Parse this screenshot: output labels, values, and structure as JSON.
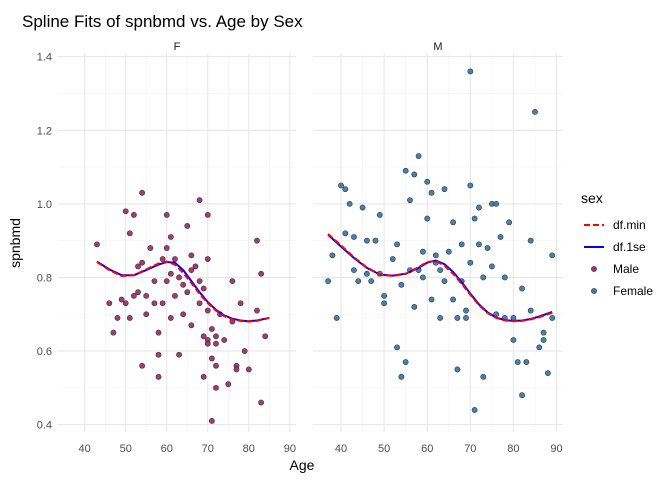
{
  "chart_data": {
    "type": "scatter",
    "title": "Spline Fits of spnbmd vs. Age by Sex",
    "xlabel": "Age",
    "ylabel": "spnbmd",
    "xticks": [
      40,
      50,
      60,
      70,
      80,
      90
    ],
    "yticks": [
      0.4,
      0.6,
      0.8,
      1.0,
      1.2,
      1.4
    ],
    "xlim": [
      33.5,
      91.5
    ],
    "ylim": [
      0.38,
      1.41
    ],
    "grid": true,
    "legend": {
      "title": "sex",
      "placement": "right",
      "entries": [
        {
          "label": "df.min",
          "kind": "line",
          "color": "#ff0000",
          "dash": true
        },
        {
          "label": "df.1se",
          "kind": "line",
          "color": "#0000ff",
          "dash": false
        },
        {
          "label": "Male",
          "kind": "point",
          "color": "#a0306f"
        },
        {
          "label": "Female",
          "kind": "point",
          "color": "#3b7bb0"
        }
      ]
    },
    "panels": [
      {
        "label": "F",
        "point_color": "#a0306f",
        "points": [
          [
            43,
            0.89
          ],
          [
            46,
            0.73
          ],
          [
            47,
            0.65
          ],
          [
            48,
            0.69
          ],
          [
            49,
            0.74
          ],
          [
            50,
            0.73
          ],
          [
            50,
            0.98
          ],
          [
            51,
            0.69
          ],
          [
            51,
            0.92
          ],
          [
            52,
            0.97
          ],
          [
            52,
            0.75
          ],
          [
            53,
            0.83
          ],
          [
            53,
            0.76
          ],
          [
            54,
            1.03
          ],
          [
            54,
            0.84
          ],
          [
            54,
            0.56
          ],
          [
            55,
            0.75
          ],
          [
            55,
            0.7
          ],
          [
            56,
            0.88
          ],
          [
            57,
            0.73
          ],
          [
            57,
            0.79
          ],
          [
            58,
            0.65
          ],
          [
            58,
            0.53
          ],
          [
            58,
            0.59
          ],
          [
            59,
            0.85
          ],
          [
            59,
            0.73
          ],
          [
            60,
            0.79
          ],
          [
            60,
            0.88
          ],
          [
            60,
            0.97
          ],
          [
            61,
            0.81
          ],
          [
            61,
            0.91
          ],
          [
            61,
            0.69
          ],
          [
            62,
            0.85
          ],
          [
            62,
            0.75
          ],
          [
            63,
            0.8
          ],
          [
            63,
            0.59
          ],
          [
            64,
            0.78
          ],
          [
            64,
            0.7
          ],
          [
            65,
            0.94
          ],
          [
            65,
            0.76
          ],
          [
            66,
            0.67
          ],
          [
            66,
            0.86
          ],
          [
            66,
            0.82
          ],
          [
            67,
            0.83
          ],
          [
            68,
            0.79
          ],
          [
            68,
            1.01
          ],
          [
            68,
            0.73
          ],
          [
            69,
            0.64
          ],
          [
            69,
            0.77
          ],
          [
            69,
            0.53
          ],
          [
            70,
            0.97
          ],
          [
            70,
            0.85
          ],
          [
            70,
            0.71
          ],
          [
            70,
            0.63
          ],
          [
            70,
            0.62
          ],
          [
            71,
            0.66
          ],
          [
            71,
            0.58
          ],
          [
            72,
            0.64
          ],
          [
            72,
            0.62
          ],
          [
            72,
            0.56
          ],
          [
            72,
            0.5
          ],
          [
            73,
            0.7
          ],
          [
            74,
            0.63
          ],
          [
            75,
            0.51
          ],
          [
            76,
            0.79
          ],
          [
            76,
            0.68
          ],
          [
            77,
            0.56
          ],
          [
            77,
            0.55
          ],
          [
            78,
            0.73
          ],
          [
            79,
            0.6
          ],
          [
            80,
            0.55
          ],
          [
            82,
            0.9
          ],
          [
            82,
            0.71
          ],
          [
            83,
            0.81
          ],
          [
            83,
            0.46
          ],
          [
            84,
            0.64
          ],
          [
            71,
            0.41
          ]
        ],
        "df_min": [
          [
            43,
            0.842
          ],
          [
            46,
            0.82
          ],
          [
            49,
            0.804
          ],
          [
            52,
            0.806
          ],
          [
            55,
            0.822
          ],
          [
            58,
            0.838
          ],
          [
            60,
            0.843
          ],
          [
            62,
            0.835
          ],
          [
            64,
            0.812
          ],
          [
            66,
            0.785
          ],
          [
            68,
            0.755
          ],
          [
            70,
            0.73
          ],
          [
            72,
            0.71
          ],
          [
            74,
            0.695
          ],
          [
            76,
            0.686
          ],
          [
            78,
            0.682
          ],
          [
            80,
            0.68
          ],
          [
            82,
            0.682
          ],
          [
            85,
            0.69
          ]
        ],
        "df_1se": [
          [
            43,
            0.843
          ],
          [
            46,
            0.822
          ],
          [
            49,
            0.806
          ],
          [
            52,
            0.806
          ],
          [
            55,
            0.82
          ],
          [
            58,
            0.835
          ],
          [
            60,
            0.842
          ],
          [
            62,
            0.84
          ],
          [
            64,
            0.82
          ],
          [
            66,
            0.79
          ],
          [
            68,
            0.76
          ],
          [
            70,
            0.733
          ],
          [
            72,
            0.712
          ],
          [
            74,
            0.697
          ],
          [
            76,
            0.688
          ],
          [
            78,
            0.683
          ],
          [
            80,
            0.681
          ],
          [
            82,
            0.683
          ],
          [
            85,
            0.69
          ]
        ]
      },
      {
        "label": "M",
        "point_color": "#3b7bb0",
        "points": [
          [
            37,
            0.79
          ],
          [
            38,
            0.86
          ],
          [
            39,
            0.69
          ],
          [
            40,
            1.05
          ],
          [
            41,
            1.04
          ],
          [
            41,
            0.92
          ],
          [
            42,
            1.0
          ],
          [
            43,
            0.91
          ],
          [
            43,
            0.82
          ],
          [
            44,
            0.79
          ],
          [
            45,
            0.99
          ],
          [
            46,
            0.9
          ],
          [
            46,
            0.81
          ],
          [
            47,
            0.79
          ],
          [
            48,
            0.9
          ],
          [
            49,
            0.97
          ],
          [
            49,
            0.81
          ],
          [
            50,
            0.75
          ],
          [
            50,
            0.73
          ],
          [
            52,
            0.85
          ],
          [
            53,
            0.89
          ],
          [
            53,
            0.61
          ],
          [
            54,
            0.78
          ],
          [
            54,
            0.53
          ],
          [
            55,
            0.57
          ],
          [
            55,
            1.09
          ],
          [
            56,
            0.82
          ],
          [
            56,
            1.01
          ],
          [
            57,
            1.08
          ],
          [
            57,
            0.72
          ],
          [
            58,
            0.82
          ],
          [
            58,
            1.13
          ],
          [
            59,
            0.87
          ],
          [
            59,
            0.8
          ],
          [
            60,
            0.96
          ],
          [
            60,
            1.06
          ],
          [
            61,
            0.74
          ],
          [
            61,
            1.03
          ],
          [
            62,
            0.86
          ],
          [
            62,
            0.84
          ],
          [
            63,
            0.82
          ],
          [
            63,
            0.69
          ],
          [
            64,
            1.04
          ],
          [
            64,
            0.79
          ],
          [
            65,
            0.87
          ],
          [
            66,
            0.95
          ],
          [
            66,
            0.74
          ],
          [
            67,
            0.69
          ],
          [
            67,
            0.55
          ],
          [
            68,
            0.89
          ],
          [
            68,
            0.79
          ],
          [
            69,
            0.71
          ],
          [
            69,
            0.69
          ],
          [
            70,
            1.05
          ],
          [
            70,
            1.36
          ],
          [
            70,
            0.84
          ],
          [
            71,
            0.96
          ],
          [
            71,
            0.44
          ],
          [
            72,
            0.99
          ],
          [
            72,
            0.89
          ],
          [
            73,
            0.8
          ],
          [
            73,
            0.53
          ],
          [
            74,
            0.88
          ],
          [
            75,
            1.0
          ],
          [
            75,
            0.83
          ],
          [
            76,
            1.0
          ],
          [
            76,
            0.7
          ],
          [
            77,
            0.91
          ],
          [
            78,
            0.69
          ],
          [
            78,
            0.8
          ],
          [
            79,
            0.95
          ],
          [
            80,
            0.69
          ],
          [
            80,
            0.63
          ],
          [
            81,
            0.57
          ],
          [
            82,
            0.77
          ],
          [
            82,
            0.48
          ],
          [
            83,
            0.57
          ],
          [
            84,
            0.71
          ],
          [
            84,
            0.9
          ],
          [
            85,
            1.25
          ],
          [
            86,
            0.61
          ],
          [
            87,
            0.63
          ],
          [
            87,
            0.65
          ],
          [
            88,
            0.54
          ],
          [
            89,
            0.86
          ],
          [
            89,
            0.69
          ]
        ],
        "df_min": [
          [
            37,
            0.918
          ],
          [
            40,
            0.887
          ],
          [
            43,
            0.855
          ],
          [
            46,
            0.827
          ],
          [
            49,
            0.808
          ],
          [
            52,
            0.804
          ],
          [
            55,
            0.81
          ],
          [
            58,
            0.828
          ],
          [
            60,
            0.842
          ],
          [
            62,
            0.845
          ],
          [
            64,
            0.832
          ],
          [
            66,
            0.81
          ],
          [
            68,
            0.783
          ],
          [
            70,
            0.753
          ],
          [
            72,
            0.725
          ],
          [
            74,
            0.703
          ],
          [
            76,
            0.69
          ],
          [
            78,
            0.683
          ],
          [
            80,
            0.681
          ],
          [
            82,
            0.682
          ],
          [
            84,
            0.686
          ],
          [
            86,
            0.692
          ],
          [
            89,
            0.704
          ]
        ],
        "df_1se": [
          [
            37,
            0.916
          ],
          [
            40,
            0.884
          ],
          [
            43,
            0.853
          ],
          [
            46,
            0.826
          ],
          [
            49,
            0.808
          ],
          [
            52,
            0.805
          ],
          [
            55,
            0.81
          ],
          [
            58,
            0.826
          ],
          [
            60,
            0.84
          ],
          [
            62,
            0.846
          ],
          [
            64,
            0.836
          ],
          [
            66,
            0.815
          ],
          [
            68,
            0.787
          ],
          [
            70,
            0.756
          ],
          [
            72,
            0.727
          ],
          [
            74,
            0.705
          ],
          [
            76,
            0.691
          ],
          [
            78,
            0.684
          ],
          [
            80,
            0.682
          ],
          [
            82,
            0.683
          ],
          [
            84,
            0.687
          ],
          [
            86,
            0.694
          ],
          [
            89,
            0.706
          ]
        ]
      }
    ]
  }
}
